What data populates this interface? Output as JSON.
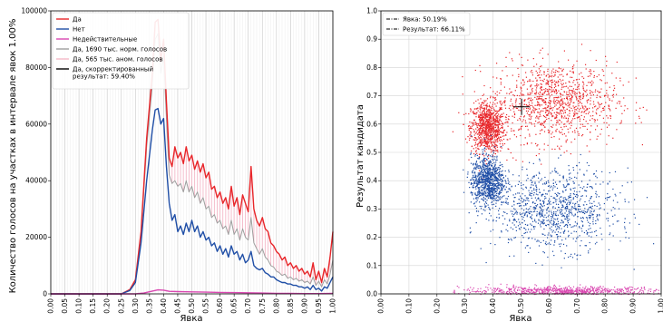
{
  "chart_data": [
    {
      "type": "line",
      "xlabel": "Явка",
      "ylabel": "Количество голосов на участках в интервале явок 1.00%",
      "xlim": [
        0.0,
        1.0
      ],
      "ylim": [
        0,
        100000
      ],
      "grid": "vertical",
      "legend_position": "top-left",
      "x_ticks": [
        "0.00",
        "0.05",
        "0.10",
        "0.15",
        "0.20",
        "0.25",
        "0.30",
        "0.35",
        "0.40",
        "0.45",
        "0.50",
        "0.55",
        "0.60",
        "0.65",
        "0.70",
        "0.75",
        "0.80",
        "0.85",
        "0.90",
        "0.95",
        "1.00"
      ],
      "y_ticks": [
        "0",
        "20000",
        "40000",
        "60000",
        "80000",
        "100000"
      ],
      "legend": [
        {
          "label": "Да",
          "color": "#e8262a"
        },
        {
          "label": "Нет",
          "color": "#1f4ea6"
        },
        {
          "label": "Недействительные",
          "color": "#d946b0"
        },
        {
          "label": "Да, 1690 тыс. норм. голосов",
          "color": "#9e9e9e"
        },
        {
          "label": "Да, 565 тыс. аном. голосов",
          "color": "#f4b8c8"
        },
        {
          "label": "Да, скорректированный результат: 59.40%",
          "color": "#000000"
        }
      ],
      "series": [
        {
          "name": "Да",
          "color": "#e8262a",
          "points": [
            [
              0.0,
              0
            ],
            [
              0.25,
              0
            ],
            [
              0.28,
              1500
            ],
            [
              0.3,
              5000
            ],
            [
              0.32,
              22000
            ],
            [
              0.34,
              55000
            ],
            [
              0.36,
              78000
            ],
            [
              0.37,
              96000
            ],
            [
              0.38,
              97000
            ],
            [
              0.39,
              82000
            ],
            [
              0.4,
              90000
            ],
            [
              0.41,
              68000
            ],
            [
              0.42,
              48000
            ],
            [
              0.43,
              45000
            ],
            [
              0.44,
              52000
            ],
            [
              0.45,
              48000
            ],
            [
              0.46,
              50000
            ],
            [
              0.47,
              46000
            ],
            [
              0.48,
              52000
            ],
            [
              0.49,
              47000
            ],
            [
              0.5,
              49000
            ],
            [
              0.51,
              44000
            ],
            [
              0.52,
              47000
            ],
            [
              0.53,
              43000
            ],
            [
              0.54,
              46000
            ],
            [
              0.55,
              41000
            ],
            [
              0.56,
              43000
            ],
            [
              0.57,
              37000
            ],
            [
              0.58,
              38000
            ],
            [
              0.59,
              34000
            ],
            [
              0.6,
              36000
            ],
            [
              0.61,
              32000
            ],
            [
              0.62,
              34000
            ],
            [
              0.63,
              30000
            ],
            [
              0.64,
              38000
            ],
            [
              0.65,
              31000
            ],
            [
              0.66,
              34000
            ],
            [
              0.67,
              28000
            ],
            [
              0.68,
              35000
            ],
            [
              0.69,
              32000
            ],
            [
              0.7,
              29000
            ],
            [
              0.71,
              45000
            ],
            [
              0.72,
              30000
            ],
            [
              0.73,
              26000
            ],
            [
              0.74,
              24000
            ],
            [
              0.75,
              27000
            ],
            [
              0.76,
              23000
            ],
            [
              0.77,
              22000
            ],
            [
              0.78,
              18000
            ],
            [
              0.79,
              17000
            ],
            [
              0.8,
              15000
            ],
            [
              0.81,
              14000
            ],
            [
              0.82,
              12000
            ],
            [
              0.83,
              13000
            ],
            [
              0.84,
              10000
            ],
            [
              0.85,
              11000
            ],
            [
              0.86,
              9000
            ],
            [
              0.87,
              10000
            ],
            [
              0.88,
              8000
            ],
            [
              0.89,
              9000
            ],
            [
              0.9,
              7000
            ],
            [
              0.91,
              8000
            ],
            [
              0.92,
              6000
            ],
            [
              0.93,
              11000
            ],
            [
              0.94,
              5000
            ],
            [
              0.95,
              8000
            ],
            [
              0.96,
              4000
            ],
            [
              0.97,
              9000
            ],
            [
              0.98,
              6000
            ],
            [
              0.99,
              13000
            ],
            [
              1.0,
              22000
            ]
          ]
        },
        {
          "name": "Нет",
          "color": "#1f4ea6",
          "points": [
            [
              0.0,
              0
            ],
            [
              0.25,
              0
            ],
            [
              0.28,
              1200
            ],
            [
              0.3,
              4000
            ],
            [
              0.32,
              18000
            ],
            [
              0.34,
              40000
            ],
            [
              0.36,
              58000
            ],
            [
              0.37,
              65000
            ],
            [
              0.38,
              65500
            ],
            [
              0.39,
              60000
            ],
            [
              0.4,
              62000
            ],
            [
              0.41,
              45000
            ],
            [
              0.42,
              32000
            ],
            [
              0.43,
              26000
            ],
            [
              0.44,
              28000
            ],
            [
              0.45,
              22000
            ],
            [
              0.46,
              24000
            ],
            [
              0.47,
              21000
            ],
            [
              0.48,
              25000
            ],
            [
              0.49,
              22000
            ],
            [
              0.5,
              26000
            ],
            [
              0.51,
              22000
            ],
            [
              0.52,
              24000
            ],
            [
              0.53,
              20000
            ],
            [
              0.54,
              22000
            ],
            [
              0.55,
              19000
            ],
            [
              0.56,
              20000
            ],
            [
              0.57,
              17000
            ],
            [
              0.58,
              18000
            ],
            [
              0.59,
              15000
            ],
            [
              0.6,
              17000
            ],
            [
              0.61,
              14000
            ],
            [
              0.62,
              16000
            ],
            [
              0.63,
              13000
            ],
            [
              0.64,
              17000
            ],
            [
              0.65,
              14000
            ],
            [
              0.66,
              15000
            ],
            [
              0.67,
              12000
            ],
            [
              0.68,
              14000
            ],
            [
              0.69,
              11000
            ],
            [
              0.7,
              12000
            ],
            [
              0.71,
              15000
            ],
            [
              0.72,
              10000
            ],
            [
              0.73,
              9000
            ],
            [
              0.74,
              8500
            ],
            [
              0.75,
              9000
            ],
            [
              0.76,
              7500
            ],
            [
              0.77,
              7000
            ],
            [
              0.78,
              6000
            ],
            [
              0.79,
              6000
            ],
            [
              0.8,
              5000
            ],
            [
              0.81,
              4500
            ],
            [
              0.82,
              4000
            ],
            [
              0.83,
              4000
            ],
            [
              0.84,
              3500
            ],
            [
              0.85,
              3500
            ],
            [
              0.86,
              3000
            ],
            [
              0.87,
              3000
            ],
            [
              0.88,
              2500
            ],
            [
              0.89,
              2500
            ],
            [
              0.9,
              2000
            ],
            [
              0.91,
              2500
            ],
            [
              0.92,
              1500
            ],
            [
              0.93,
              3000
            ],
            [
              0.94,
              1500
            ],
            [
              0.95,
              2000
            ],
            [
              0.96,
              1000
            ],
            [
              0.97,
              2500
            ],
            [
              0.98,
              2000
            ],
            [
              0.99,
              4000
            ],
            [
              1.0,
              6000
            ]
          ]
        },
        {
          "name": "Недействительные",
          "color": "#d946b0",
          "points": [
            [
              0.0,
              0
            ],
            [
              0.3,
              0
            ],
            [
              0.33,
              300
            ],
            [
              0.36,
              1000
            ],
            [
              0.38,
              1400
            ],
            [
              0.4,
              1300
            ],
            [
              0.42,
              900
            ],
            [
              0.45,
              800
            ],
            [
              0.5,
              700
            ],
            [
              0.55,
              600
            ],
            [
              0.6,
              500
            ],
            [
              0.65,
              450
            ],
            [
              0.7,
              400
            ],
            [
              0.75,
              300
            ],
            [
              0.8,
              200
            ],
            [
              0.85,
              150
            ],
            [
              0.9,
              100
            ],
            [
              0.95,
              100
            ],
            [
              1.0,
              200
            ]
          ]
        },
        {
          "name": "Да, 1690 тыс. норм. голосов",
          "color": "#9e9e9e",
          "points": [
            [
              0.0,
              0
            ],
            [
              0.25,
              0
            ],
            [
              0.28,
              1400
            ],
            [
              0.3,
              4800
            ],
            [
              0.32,
              21000
            ],
            [
              0.34,
              52000
            ],
            [
              0.36,
              74000
            ],
            [
              0.37,
              90000
            ],
            [
              0.38,
              92000
            ],
            [
              0.39,
              78000
            ],
            [
              0.4,
              84000
            ],
            [
              0.41,
              62000
            ],
            [
              0.42,
              42000
            ],
            [
              0.43,
              39000
            ],
            [
              0.44,
              40000
            ],
            [
              0.45,
              38000
            ],
            [
              0.46,
              39000
            ],
            [
              0.47,
              36000
            ],
            [
              0.48,
              40000
            ],
            [
              0.49,
              36000
            ],
            [
              0.5,
              38000
            ],
            [
              0.51,
              34000
            ],
            [
              0.52,
              36000
            ],
            [
              0.53,
              32000
            ],
            [
              0.54,
              34000
            ],
            [
              0.55,
              30000
            ],
            [
              0.56,
              31000
            ],
            [
              0.57,
              27000
            ],
            [
              0.58,
              28000
            ],
            [
              0.59,
              25000
            ],
            [
              0.6,
              26000
            ],
            [
              0.61,
              23000
            ],
            [
              0.62,
              24000
            ],
            [
              0.63,
              21000
            ],
            [
              0.64,
              26000
            ],
            [
              0.65,
              21000
            ],
            [
              0.66,
              23000
            ],
            [
              0.67,
              19000
            ],
            [
              0.68,
              23000
            ],
            [
              0.69,
              20000
            ],
            [
              0.7,
              19000
            ],
            [
              0.71,
              27000
            ],
            [
              0.72,
              18000
            ],
            [
              0.73,
              16000
            ],
            [
              0.74,
              14000
            ],
            [
              0.75,
              16000
            ],
            [
              0.76,
              13000
            ],
            [
              0.77,
              12000
            ],
            [
              0.78,
              10000
            ],
            [
              0.79,
              9500
            ],
            [
              0.8,
              8000
            ],
            [
              0.81,
              7500
            ],
            [
              0.82,
              6500
            ],
            [
              0.83,
              7000
            ],
            [
              0.84,
              5500
            ],
            [
              0.85,
              6000
            ],
            [
              0.86,
              5000
            ],
            [
              0.87,
              5500
            ],
            [
              0.88,
              4500
            ],
            [
              0.89,
              5000
            ],
            [
              0.9,
              4000
            ],
            [
              0.91,
              4500
            ],
            [
              0.92,
              3500
            ],
            [
              0.93,
              6000
            ],
            [
              0.94,
              3000
            ],
            [
              0.95,
              4500
            ],
            [
              0.96,
              2500
            ],
            [
              0.97,
              5000
            ],
            [
              0.98,
              3500
            ],
            [
              0.99,
              7000
            ],
            [
              1.0,
              12000
            ]
          ]
        }
      ]
    },
    {
      "type": "scatter",
      "xlabel": "Явка",
      "ylabel": "Результат кандидата",
      "xlim": [
        0.0,
        1.0
      ],
      "ylim": [
        0.0,
        1.0
      ],
      "grid": "both",
      "legend_position": "top-left",
      "x_ticks": [
        "0.00",
        "0.10",
        "0.20",
        "0.30",
        "0.40",
        "0.50",
        "0.60",
        "0.70",
        "0.80",
        "0.90",
        "1.00"
      ],
      "y_ticks": [
        "0.0",
        "0.1",
        "0.2",
        "0.3",
        "0.4",
        "0.5",
        "0.6",
        "0.7",
        "0.8",
        "0.9",
        "1.0"
      ],
      "legend": [
        {
          "label": "Явка: 50.19%",
          "color": "#000000"
        },
        {
          "label": "Результат: 66.11%",
          "color": "#000000"
        }
      ],
      "marker": {
        "x": 0.5019,
        "y": 0.6611
      },
      "clusters": [
        {
          "name": "Да",
          "color": "#e8262a",
          "center": [
            0.38,
            0.59
          ],
          "spread": [
            0.03,
            0.045
          ],
          "count": 900
        },
        {
          "name": "Да",
          "color": "#e8262a",
          "center": [
            0.62,
            0.68
          ],
          "spread": [
            0.11,
            0.07
          ],
          "count": 1100
        },
        {
          "name": "Нет",
          "color": "#1f4ea6",
          "center": [
            0.38,
            0.4
          ],
          "spread": [
            0.03,
            0.045
          ],
          "count": 900
        },
        {
          "name": "Нет",
          "color": "#1f4ea6",
          "center": [
            0.62,
            0.3
          ],
          "spread": [
            0.11,
            0.07
          ],
          "count": 1000
        },
        {
          "name": "Недействительные",
          "color": "#d946b0",
          "center": [
            0.65,
            0.012
          ],
          "spread": [
            0.18,
            0.008
          ],
          "count": 700
        }
      ]
    }
  ]
}
